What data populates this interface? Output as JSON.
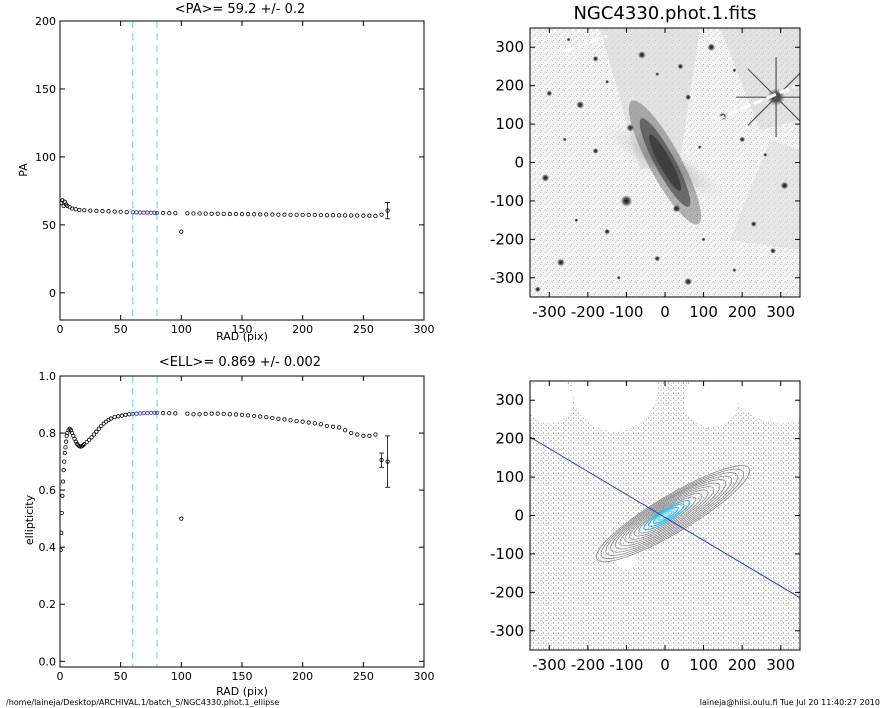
{
  "chart_data": [
    {
      "type": "scatter",
      "title": "<PA>=  59.2 +/-   0.2",
      "xlabel": "RAD (pix)",
      "ylabel": "PA",
      "xlim": [
        0,
        300
      ],
      "ylim": [
        -20,
        200
      ],
      "xticks": [
        "0",
        "50",
        "100",
        "150",
        "200",
        "250",
        "300"
      ],
      "yticks": [
        "0",
        "50",
        "100",
        "150",
        "200"
      ],
      "xtick_values": [
        0,
        50,
        100,
        150,
        200,
        250,
        300
      ],
      "ytick_values": [
        0,
        50,
        100,
        150,
        200
      ],
      "vlines": [
        60,
        80
      ],
      "vline_color": "#5fd8d8",
      "highlight_color": "#3030a0",
      "highlight_range": [
        60,
        80
      ],
      "points": [
        [
          1,
          66
        ],
        [
          2,
          68
        ],
        [
          3,
          64
        ],
        [
          4,
          67
        ],
        [
          5,
          65
        ],
        [
          6,
          64
        ],
        [
          8,
          63
        ],
        [
          10,
          62
        ],
        [
          13,
          61.5
        ],
        [
          16,
          61
        ],
        [
          20,
          60.8
        ],
        [
          25,
          60.5
        ],
        [
          30,
          60.3
        ],
        [
          35,
          60.1
        ],
        [
          40,
          60
        ],
        [
          45,
          59.8
        ],
        [
          50,
          59.6
        ],
        [
          55,
          59.4
        ],
        [
          60,
          59.3
        ],
        [
          63,
          59.2
        ],
        [
          66,
          59.1
        ],
        [
          69,
          59
        ],
        [
          72,
          59
        ],
        [
          75,
          58.9
        ],
        [
          78,
          58.9
        ],
        [
          80,
          58.8
        ],
        [
          85,
          58.7
        ],
        [
          90,
          58.6
        ],
        [
          95,
          58.6
        ],
        [
          100,
          45
        ],
        [
          105,
          58.5
        ],
        [
          110,
          58.4
        ],
        [
          115,
          58.4
        ],
        [
          120,
          58.3
        ],
        [
          125,
          58.2
        ],
        [
          130,
          58.2
        ],
        [
          135,
          58.1
        ],
        [
          140,
          58
        ],
        [
          145,
          58
        ],
        [
          150,
          57.9
        ],
        [
          155,
          57.9
        ],
        [
          160,
          57.8
        ],
        [
          165,
          57.7
        ],
        [
          170,
          57.7
        ],
        [
          175,
          57.6
        ],
        [
          180,
          57.5
        ],
        [
          185,
          57.5
        ],
        [
          190,
          57.4
        ],
        [
          195,
          57.4
        ],
        [
          200,
          57.3
        ],
        [
          205,
          57.3
        ],
        [
          210,
          57.3
        ],
        [
          215,
          57.2
        ],
        [
          220,
          57.1
        ],
        [
          225,
          57.1
        ],
        [
          230,
          57
        ],
        [
          235,
          57
        ],
        [
          240,
          56.9
        ],
        [
          245,
          56.9
        ],
        [
          250,
          56.8
        ],
        [
          255,
          56.8
        ],
        [
          260,
          56.6
        ],
        [
          265,
          57.5
        ],
        [
          270,
          60.5
        ]
      ],
      "errorbars": [
        {
          "x": 270,
          "y": 60.5,
          "err": 6
        }
      ]
    },
    {
      "type": "scatter",
      "title": "<ELL>= 0.869 +/-  0.002",
      "xlabel": "RAD (pix)",
      "ylabel": "ellipticity",
      "xlim": [
        0,
        300
      ],
      "ylim": [
        -0.02,
        1.0
      ],
      "xticks": [
        "0",
        "50",
        "100",
        "150",
        "200",
        "250",
        "300"
      ],
      "yticks": [
        "0.0",
        "0.2",
        "0.4",
        "0.6",
        "0.8",
        "1.0"
      ],
      "xtick_values": [
        0,
        50,
        100,
        150,
        200,
        250,
        300
      ],
      "ytick_values": [
        0,
        0.2,
        0.4,
        0.6,
        0.8,
        1.0
      ],
      "vlines": [
        60,
        80
      ],
      "vline_color": "#5fd8d8",
      "highlight_color": "#3030a0",
      "highlight_range": [
        60,
        80
      ],
      "points": [
        [
          0.5,
          0.39
        ],
        [
          1,
          0.45
        ],
        [
          1.5,
          0.52
        ],
        [
          2,
          0.58
        ],
        [
          2.5,
          0.63
        ],
        [
          3,
          0.67
        ],
        [
          3.5,
          0.7
        ],
        [
          4,
          0.73
        ],
        [
          4.5,
          0.75
        ],
        [
          5,
          0.77
        ],
        [
          5.5,
          0.79
        ],
        [
          6,
          0.8
        ],
        [
          7,
          0.81
        ],
        [
          8,
          0.815
        ],
        [
          9,
          0.81
        ],
        [
          10,
          0.8
        ],
        [
          11,
          0.79
        ],
        [
          12,
          0.78
        ],
        [
          13,
          0.77
        ],
        [
          14,
          0.762
        ],
        [
          15,
          0.757
        ],
        [
          16,
          0.754
        ],
        [
          17,
          0.753
        ],
        [
          18,
          0.754
        ],
        [
          19,
          0.757
        ],
        [
          20,
          0.761
        ],
        [
          22,
          0.768
        ],
        [
          24,
          0.776
        ],
        [
          26,
          0.785
        ],
        [
          28,
          0.795
        ],
        [
          30,
          0.805
        ],
        [
          32,
          0.815
        ],
        [
          34,
          0.825
        ],
        [
          36,
          0.833
        ],
        [
          38,
          0.84
        ],
        [
          40,
          0.846
        ],
        [
          42,
          0.851
        ],
        [
          45,
          0.856
        ],
        [
          48,
          0.859
        ],
        [
          51,
          0.861
        ],
        [
          54,
          0.864
        ],
        [
          57,
          0.866
        ],
        [
          60,
          0.867
        ],
        [
          63,
          0.868
        ],
        [
          66,
          0.869
        ],
        [
          69,
          0.87
        ],
        [
          72,
          0.87
        ],
        [
          75,
          0.871
        ],
        [
          78,
          0.871
        ],
        [
          80,
          0.871
        ],
        [
          85,
          0.87
        ],
        [
          90,
          0.87
        ],
        [
          95,
          0.869
        ],
        [
          100,
          0.5
        ],
        [
          105,
          0.868
        ],
        [
          110,
          0.866
        ],
        [
          115,
          0.866
        ],
        [
          120,
          0.867
        ],
        [
          125,
          0.868
        ],
        [
          130,
          0.868
        ],
        [
          135,
          0.867
        ],
        [
          140,
          0.866
        ],
        [
          145,
          0.865
        ],
        [
          150,
          0.864
        ],
        [
          155,
          0.862
        ],
        [
          160,
          0.86
        ],
        [
          165,
          0.858
        ],
        [
          170,
          0.856
        ],
        [
          175,
          0.853
        ],
        [
          180,
          0.85
        ],
        [
          185,
          0.848
        ],
        [
          190,
          0.845
        ],
        [
          195,
          0.842
        ],
        [
          200,
          0.84
        ],
        [
          205,
          0.837
        ],
        [
          210,
          0.834
        ],
        [
          215,
          0.831
        ],
        [
          220,
          0.825
        ],
        [
          225,
          0.822
        ],
        [
          230,
          0.82
        ],
        [
          235,
          0.81
        ],
        [
          240,
          0.8
        ],
        [
          245,
          0.795
        ],
        [
          250,
          0.79
        ],
        [
          255,
          0.79
        ],
        [
          260,
          0.795
        ],
        [
          265,
          0.705
        ],
        [
          270,
          0.7
        ]
      ],
      "errorbars": [
        {
          "x": 265,
          "y": 0.705,
          "err": 0.025
        },
        {
          "x": 270,
          "y": 0.7,
          "err": 0.09
        }
      ]
    }
  ],
  "images": [
    {
      "title": "NGC4330.phot.1.fits",
      "type": "grayscale galaxy image",
      "xlim": [
        -350,
        350
      ],
      "ylim": [
        -350,
        350
      ],
      "xticks": [
        "-300",
        "-200",
        "-100",
        "0",
        "100",
        "200",
        "300"
      ],
      "yticks": [
        "-300",
        "-200",
        "-100",
        "0",
        "100",
        "200",
        "300"
      ],
      "tick_values": [
        -300,
        -200,
        -100,
        0,
        100,
        200,
        300
      ],
      "galaxy_center": [
        0,
        0
      ],
      "galaxy_pa_deg": 59.2,
      "bright_star": [
        288,
        170
      ],
      "other_star": [
        -100,
        -100
      ],
      "stars": [
        [
          -250,
          320
        ],
        [
          -180,
          270
        ],
        [
          -60,
          280
        ],
        [
          -20,
          230
        ],
        [
          40,
          250
        ],
        [
          120,
          300
        ],
        [
          180,
          240
        ],
        [
          -300,
          180
        ],
        [
          -220,
          150
        ],
        [
          -150,
          210
        ],
        [
          60,
          170
        ],
        [
          150,
          120
        ],
        [
          -260,
          60
        ],
        [
          -180,
          30
        ],
        [
          -90,
          90
        ],
        [
          90,
          40
        ],
        [
          200,
          60
        ],
        [
          -310,
          -40
        ],
        [
          -230,
          -150
        ],
        [
          -150,
          -180
        ],
        [
          30,
          -120
        ],
        [
          100,
          -200
        ],
        [
          230,
          -160
        ],
        [
          -270,
          -260
        ],
        [
          -120,
          -300
        ],
        [
          -20,
          -250
        ],
        [
          60,
          -310
        ],
        [
          180,
          -280
        ],
        [
          280,
          -230
        ],
        [
          310,
          -60
        ],
        [
          260,
          20
        ],
        [
          -330,
          -330
        ]
      ]
    },
    {
      "title": "",
      "type": "contour map",
      "xlim": [
        -350,
        350
      ],
      "ylim": [
        -350,
        350
      ],
      "xticks": [
        "-300",
        "-200",
        "-100",
        "0",
        "100",
        "200",
        "300"
      ],
      "yticks": [
        "-300",
        "-200",
        "-100",
        "0",
        "100",
        "200",
        "300"
      ],
      "tick_values": [
        -300,
        -200,
        -100,
        0,
        100,
        200,
        300
      ],
      "major_axis_line_color": "#3040c0",
      "contour_color": "#808080",
      "inner_contour_color": "#40b8e0",
      "masked_regions": [
        [
          -130,
          330,
          110
        ],
        [
          120,
          300,
          70
        ],
        [
          300,
          380,
          140
        ],
        [
          -300,
          300,
          60
        ],
        [
          -100,
          -110,
          30
        ]
      ]
    }
  ],
  "footer": {
    "left": "/home/laineja/Desktop/ARCHIVAL.1/batch_5/NGC4330.phot.1_ellipse",
    "right": "laineja@hiisi.oulu.fi  Tue Jul 20 11:40:27 2010"
  }
}
